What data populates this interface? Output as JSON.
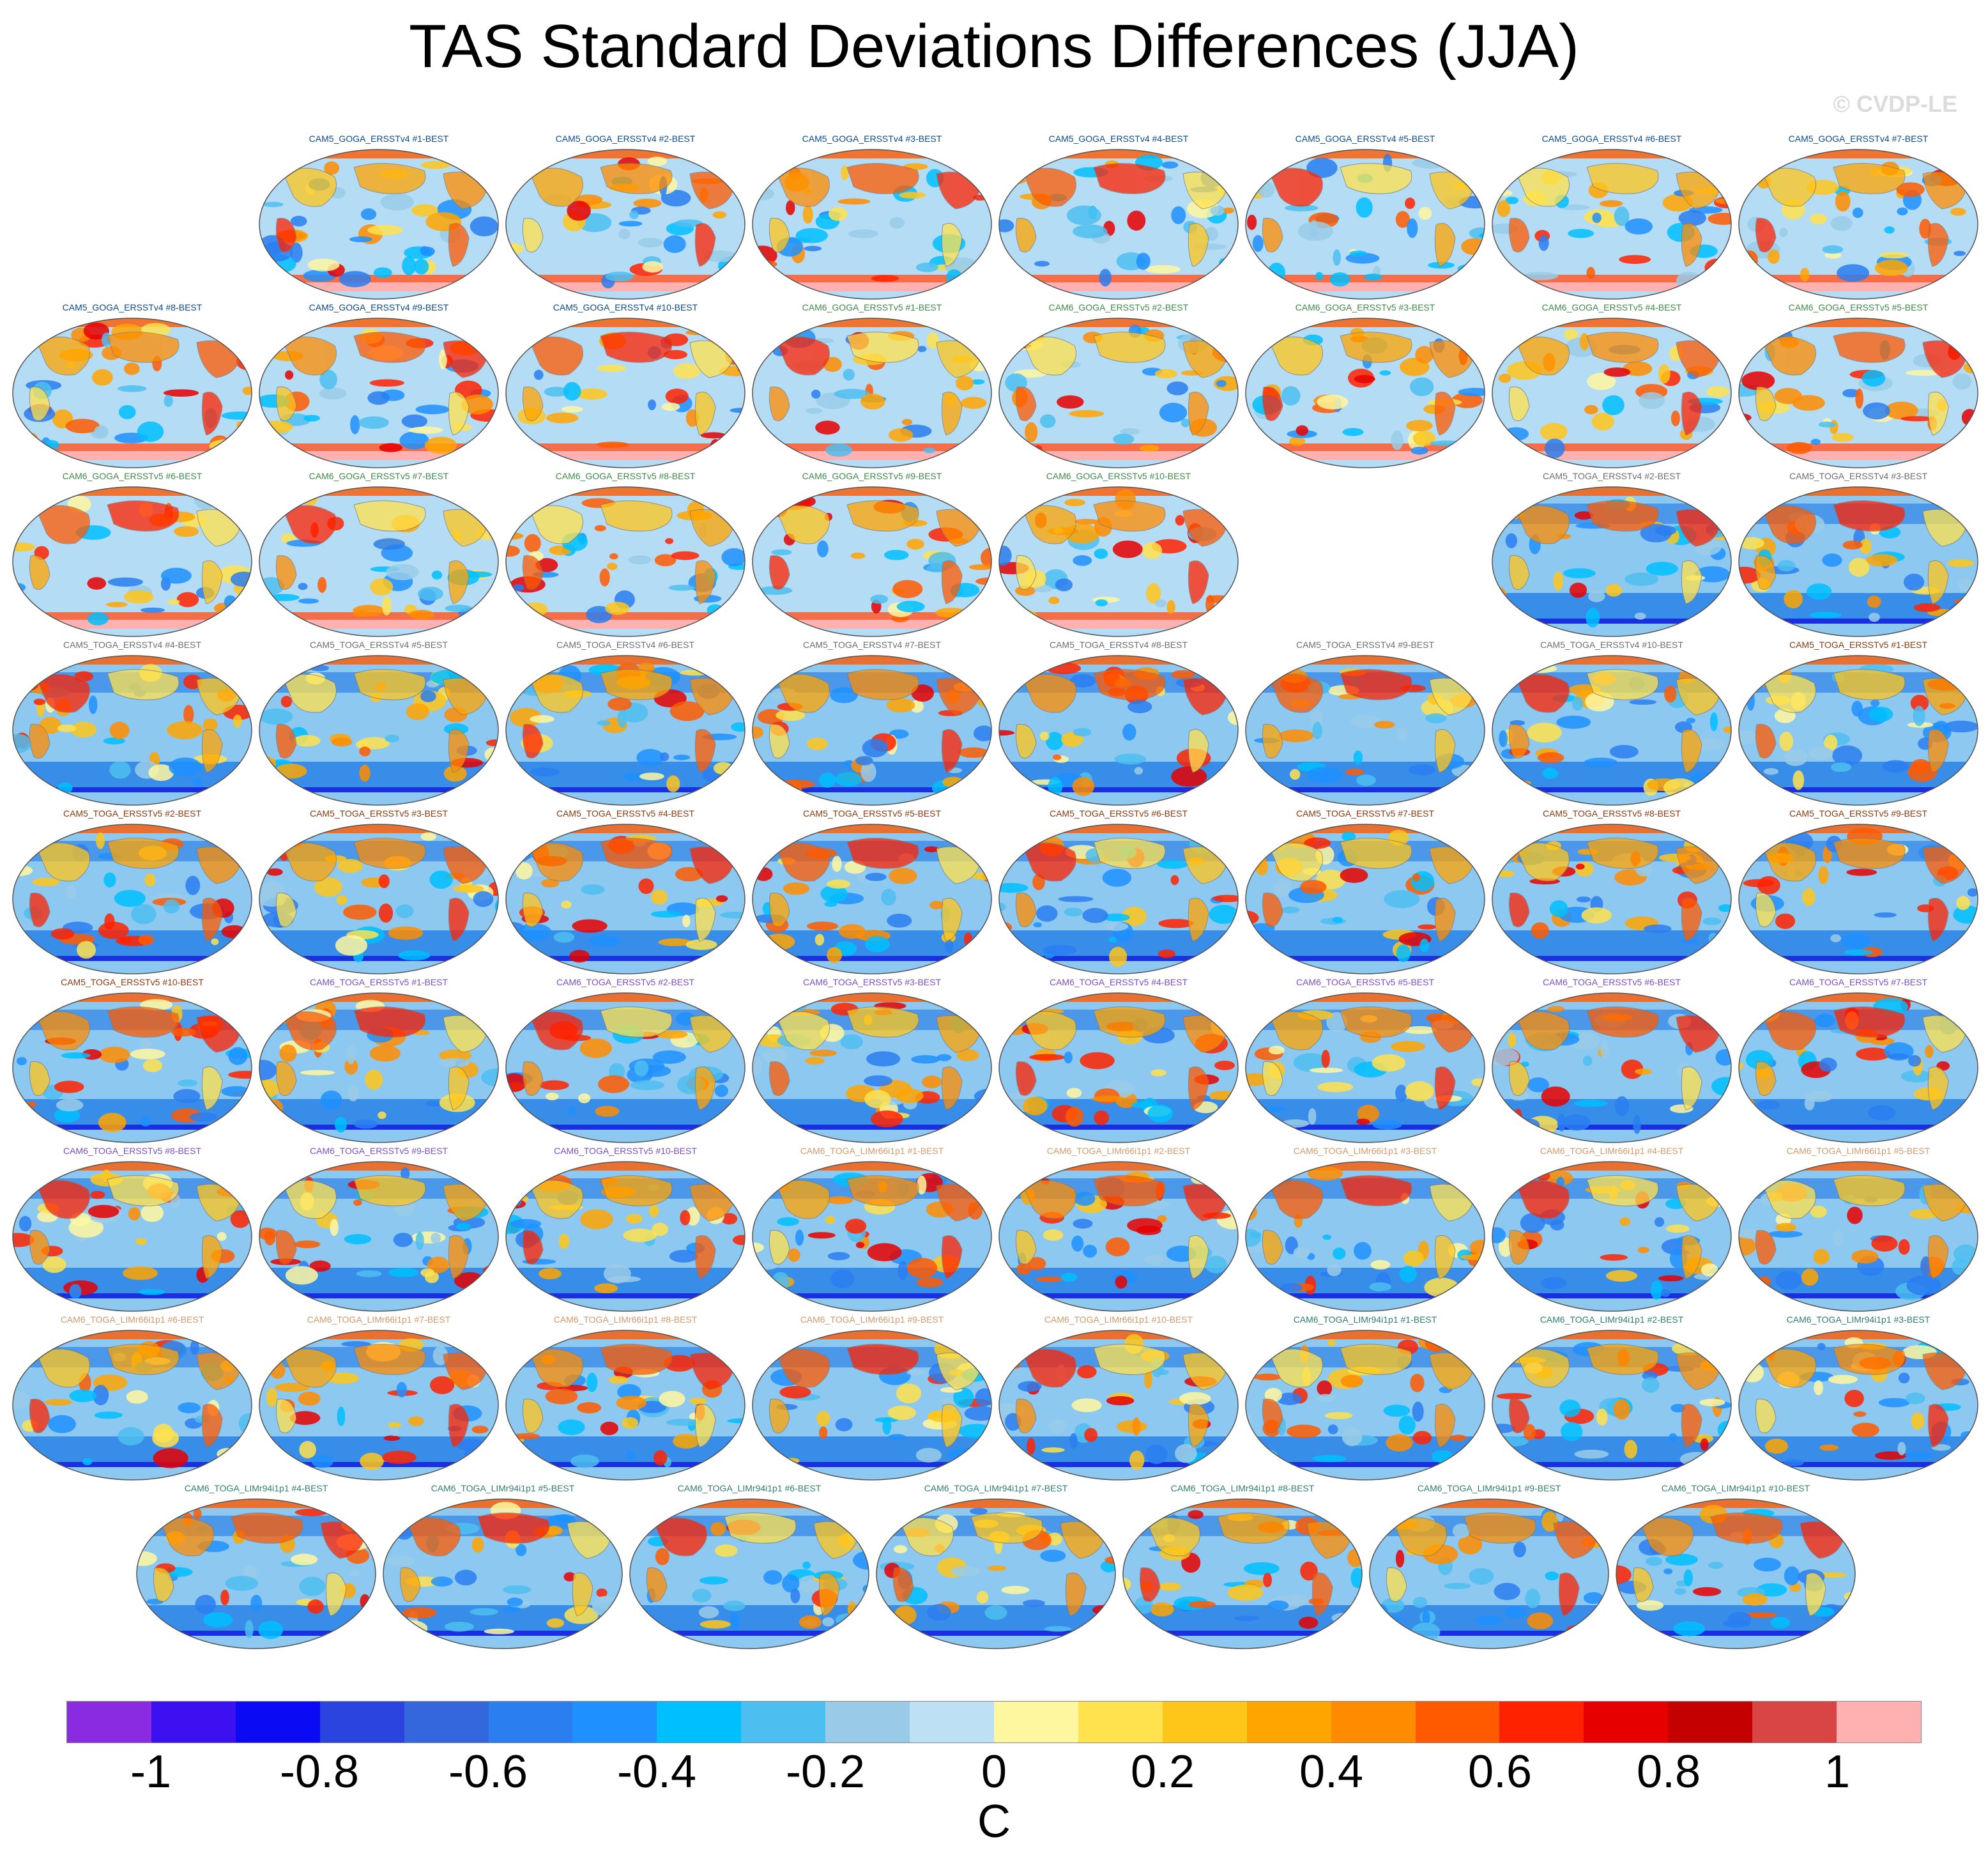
{
  "title": "TAS Standard Deviations Differences (JJA)",
  "watermark": "© CVDP-LE",
  "group_colors": {
    "cam5_goga_v4": "#0c4a86",
    "cam6_goga_v5": "#3f8a4a",
    "cam5_toga_v4": "#6e6e6e",
    "cam5_toga_v5": "#8b3a0f",
    "cam6_toga_v5": "#7a4fc4",
    "cam6_toga_lim66": "#d49a6a",
    "cam6_toga_lim94": "#2f7f6f"
  },
  "panel_rows": [
    [
      {
        "label": "",
        "empty": true
      },
      {
        "label": "CAM5_GOGA_ERSSTv4 #1-BEST",
        "group": "cam5_goga_v4"
      },
      {
        "label": "CAM5_GOGA_ERSSTv4 #2-BEST",
        "group": "cam5_goga_v4"
      },
      {
        "label": "CAM5_GOGA_ERSSTv4 #3-BEST",
        "group": "cam5_goga_v4"
      },
      {
        "label": "CAM5_GOGA_ERSSTv4 #4-BEST",
        "group": "cam5_goga_v4"
      },
      {
        "label": "CAM5_GOGA_ERSSTv4 #5-BEST",
        "group": "cam5_goga_v4"
      },
      {
        "label": "CAM5_GOGA_ERSSTv4 #6-BEST",
        "group": "cam5_goga_v4"
      },
      {
        "label": "CAM5_GOGA_ERSSTv4 #7-BEST",
        "group": "cam5_goga_v4"
      }
    ],
    [
      {
        "label": "CAM5_GOGA_ERSSTv4 #8-BEST",
        "group": "cam5_goga_v4"
      },
      {
        "label": "CAM5_GOGA_ERSSTv4 #9-BEST",
        "group": "cam5_goga_v4"
      },
      {
        "label": "CAM5_GOGA_ERSSTv4 #10-BEST",
        "group": "cam5_goga_v4"
      },
      {
        "label": "CAM6_GOGA_ERSSTv5 #1-BEST",
        "group": "cam6_goga_v5"
      },
      {
        "label": "CAM6_GOGA_ERSSTv5 #2-BEST",
        "group": "cam6_goga_v5"
      },
      {
        "label": "CAM6_GOGA_ERSSTv5 #3-BEST",
        "group": "cam6_goga_v5"
      },
      {
        "label": "CAM6_GOGA_ERSSTv5 #4-BEST",
        "group": "cam6_goga_v5"
      },
      {
        "label": "CAM6_GOGA_ERSSTv5 #5-BEST",
        "group": "cam6_goga_v5"
      }
    ],
    [
      {
        "label": "CAM6_GOGA_ERSSTv5 #6-BEST",
        "group": "cam6_goga_v5"
      },
      {
        "label": "CAM6_GOGA_ERSSTv5 #7-BEST",
        "group": "cam6_goga_v5"
      },
      {
        "label": "CAM6_GOGA_ERSSTv5 #8-BEST",
        "group": "cam6_goga_v5"
      },
      {
        "label": "CAM6_GOGA_ERSSTv5 #9-BEST",
        "group": "cam6_goga_v5"
      },
      {
        "label": "CAM6_GOGA_ERSSTv5 #10-BEST",
        "group": "cam6_goga_v5"
      },
      {
        "label": "",
        "empty": true
      },
      {
        "label": "CAM5_TOGA_ERSSTv4 #2-BEST",
        "group": "cam5_toga_v4"
      },
      {
        "label": "CAM5_TOGA_ERSSTv4 #3-BEST",
        "group": "cam5_toga_v4"
      }
    ],
    [
      {
        "label": "CAM5_TOGA_ERSSTv4 #4-BEST",
        "group": "cam5_toga_v4"
      },
      {
        "label": "CAM5_TOGA_ERSSTv4 #5-BEST",
        "group": "cam5_toga_v4"
      },
      {
        "label": "CAM5_TOGA_ERSSTv4 #6-BEST",
        "group": "cam5_toga_v4"
      },
      {
        "label": "CAM5_TOGA_ERSSTv4 #7-BEST",
        "group": "cam5_toga_v4"
      },
      {
        "label": "CAM5_TOGA_ERSSTv4 #8-BEST",
        "group": "cam5_toga_v4"
      },
      {
        "label": "CAM5_TOGA_ERSSTv4 #9-BEST",
        "group": "cam5_toga_v4"
      },
      {
        "label": "CAM5_TOGA_ERSSTv4 #10-BEST",
        "group": "cam5_toga_v4"
      },
      {
        "label": "CAM5_TOGA_ERSSTv5 #1-BEST",
        "group": "cam5_toga_v5"
      }
    ],
    [
      {
        "label": "CAM5_TOGA_ERSSTv5 #2-BEST",
        "group": "cam5_toga_v5"
      },
      {
        "label": "CAM5_TOGA_ERSSTv5 #3-BEST",
        "group": "cam5_toga_v5"
      },
      {
        "label": "CAM5_TOGA_ERSSTv5 #4-BEST",
        "group": "cam5_toga_v5"
      },
      {
        "label": "CAM5_TOGA_ERSSTv5 #5-BEST",
        "group": "cam5_toga_v5"
      },
      {
        "label": "CAM5_TOGA_ERSSTv5 #6-BEST",
        "group": "cam5_toga_v5"
      },
      {
        "label": "CAM5_TOGA_ERSSTv5 #7-BEST",
        "group": "cam5_toga_v5"
      },
      {
        "label": "CAM5_TOGA_ERSSTv5 #8-BEST",
        "group": "cam5_toga_v5"
      },
      {
        "label": "CAM5_TOGA_ERSSTv5 #9-BEST",
        "group": "cam5_toga_v5"
      }
    ],
    [
      {
        "label": "CAM5_TOGA_ERSSTv5 #10-BEST",
        "group": "cam5_toga_v5"
      },
      {
        "label": "CAM6_TOGA_ERSSTv5 #1-BEST",
        "group": "cam6_toga_v5"
      },
      {
        "label": "CAM6_TOGA_ERSSTv5 #2-BEST",
        "group": "cam6_toga_v5"
      },
      {
        "label": "CAM6_TOGA_ERSSTv5 #3-BEST",
        "group": "cam6_toga_v5"
      },
      {
        "label": "CAM6_TOGA_ERSSTv5 #4-BEST",
        "group": "cam6_toga_v5"
      },
      {
        "label": "CAM6_TOGA_ERSSTv5 #5-BEST",
        "group": "cam6_toga_v5"
      },
      {
        "label": "CAM6_TOGA_ERSSTv5 #6-BEST",
        "group": "cam6_toga_v5"
      },
      {
        "label": "CAM6_TOGA_ERSSTv5 #7-BEST",
        "group": "cam6_toga_v5"
      }
    ],
    [
      {
        "label": "CAM6_TOGA_ERSSTv5 #8-BEST",
        "group": "cam6_toga_v5"
      },
      {
        "label": "CAM6_TOGA_ERSSTv5 #9-BEST",
        "group": "cam6_toga_v5"
      },
      {
        "label": "CAM6_TOGA_ERSSTv5 #10-BEST",
        "group": "cam6_toga_v5"
      },
      {
        "label": "CAM6_TOGA_LIMr66i1p1 #1-BEST",
        "group": "cam6_toga_lim66"
      },
      {
        "label": "CAM6_TOGA_LIMr66i1p1 #2-BEST",
        "group": "cam6_toga_lim66"
      },
      {
        "label": "CAM6_TOGA_LIMr66i1p1 #3-BEST",
        "group": "cam6_toga_lim66"
      },
      {
        "label": "CAM6_TOGA_LIMr66i1p1 #4-BEST",
        "group": "cam6_toga_lim66"
      },
      {
        "label": "CAM6_TOGA_LIMr66i1p1 #5-BEST",
        "group": "cam6_toga_lim66"
      }
    ],
    [
      {
        "label": "CAM6_TOGA_LIMr66i1p1 #6-BEST",
        "group": "cam6_toga_lim66"
      },
      {
        "label": "CAM6_TOGA_LIMr66i1p1 #7-BEST",
        "group": "cam6_toga_lim66"
      },
      {
        "label": "CAM6_TOGA_LIMr66i1p1 #8-BEST",
        "group": "cam6_toga_lim66"
      },
      {
        "label": "CAM6_TOGA_LIMr66i1p1 #9-BEST",
        "group": "cam6_toga_lim66"
      },
      {
        "label": "CAM6_TOGA_LIMr66i1p1 #10-BEST",
        "group": "cam6_toga_lim66"
      },
      {
        "label": "CAM6_TOGA_LIMr94i1p1 #1-BEST",
        "group": "cam6_toga_lim94"
      },
      {
        "label": "CAM6_TOGA_LIMr94i1p1 #2-BEST",
        "group": "cam6_toga_lim94"
      },
      {
        "label": "CAM6_TOGA_LIMr94i1p1 #3-BEST",
        "group": "cam6_toga_lim94"
      }
    ],
    [
      {
        "label": "CAM6_TOGA_LIMr94i1p1 #4-BEST",
        "group": "cam6_toga_lim94"
      },
      {
        "label": "CAM6_TOGA_LIMr94i1p1 #5-BEST",
        "group": "cam6_toga_lim94"
      },
      {
        "label": "CAM6_TOGA_LIMr94i1p1 #6-BEST",
        "group": "cam6_toga_lim94"
      },
      {
        "label": "CAM6_TOGA_LIMr94i1p1 #7-BEST",
        "group": "cam6_toga_lim94"
      },
      {
        "label": "CAM6_TOGA_LIMr94i1p1 #8-BEST",
        "group": "cam6_toga_lim94"
      },
      {
        "label": "CAM6_TOGA_LIMr94i1p1 #9-BEST",
        "group": "cam6_toga_lim94"
      },
      {
        "label": "CAM6_TOGA_LIMr94i1p1 #10-BEST",
        "group": "cam6_toga_lim94"
      }
    ]
  ],
  "colorbar": {
    "colors": [
      "#8a2be2",
      "#3d10f2",
      "#0a0af5",
      "#2b44e0",
      "#3466dd",
      "#2a7ef0",
      "#1e90ff",
      "#00bfff",
      "#4dbef0",
      "#99cbe8",
      "#bde0f5",
      "#fff7a0",
      "#ffe24d",
      "#ffc61a",
      "#ffa500",
      "#ff8c00",
      "#ff5a00",
      "#ff2200",
      "#e60000",
      "#c40000",
      "#d94444",
      "#ffb0b0"
    ],
    "tick_labels": [
      "-1",
      "-0.8",
      "-0.6",
      "-0.4",
      "-0.2",
      "0",
      "0.2",
      "0.4",
      "0.6",
      "0.8",
      "1"
    ],
    "tick_values": [
      -1,
      -0.8,
      -0.6,
      -0.4,
      -0.2,
      0,
      0.2,
      0.4,
      0.6,
      0.8,
      1
    ],
    "range": [
      -1.1,
      1.1
    ],
    "unit": "C"
  }
}
